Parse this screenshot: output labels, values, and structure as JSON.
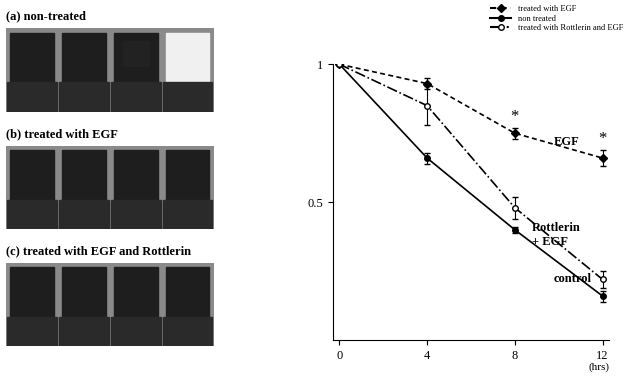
{
  "chart_data": {
    "type": "line",
    "x": [
      0,
      4,
      8,
      12
    ],
    "xlim": [
      -0.3,
      12.3
    ],
    "xticks": [
      0,
      4,
      8,
      12
    ],
    "x_label": "(hrs)",
    "ylim": [
      0,
      1.0
    ],
    "yticks": [
      0.5,
      1
    ],
    "legend": "upper right",
    "grid": false,
    "series": [
      {
        "name": "treated with EGF",
        "curve_label": "EGF",
        "color": "#000000",
        "marker": "diamond",
        "line_style": "dashed",
        "values": [
          1,
          0.93,
          0.75,
          0.66
        ],
        "errors": [
          0,
          0.02,
          0.02,
          0.03
        ],
        "significance": [
          8,
          12
        ]
      },
      {
        "name": "non treated",
        "curve_label": "control",
        "color": "#000000",
        "marker": "circle",
        "line_style": "solid",
        "values": [
          1,
          0.66,
          0.4,
          0.16
        ],
        "errors": [
          0,
          0.02,
          0.01,
          0.02
        ],
        "significance": []
      },
      {
        "name": "treated with Rottlerin and EGF",
        "curve_label": "Rottlerin\n+ EGF",
        "color": "#000000",
        "marker": "open_circle",
        "line_style": "dashdot",
        "values": [
          1,
          0.85,
          0.48,
          0.22
        ],
        "errors": [
          0,
          0.07,
          0.04,
          0.03
        ],
        "significance": []
      }
    ],
    "significance_mark": "*"
  },
  "blot_panels": [
    "(a) non-treated",
    "(b) treated with EGF",
    "(c) treated with EGF and Rottlerin"
  ]
}
